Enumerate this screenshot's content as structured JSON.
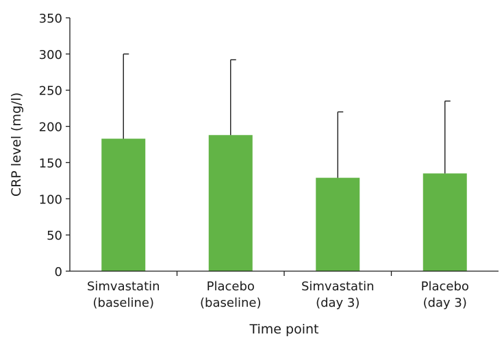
{
  "chart_data": {
    "type": "bar",
    "categories": [
      [
        "Simvastatin",
        "(baseline)"
      ],
      [
        "Placebo",
        "(baseline)"
      ],
      [
        "Simvastatin",
        "(day 3)"
      ],
      [
        "Placebo",
        "(day 3)"
      ]
    ],
    "values": [
      183,
      188,
      129,
      135
    ],
    "error_upper": [
      300,
      292,
      220,
      235
    ],
    "xlabel": "Time point",
    "ylabel": "CRP level (mg/l)",
    "ylim": [
      0,
      350
    ],
    "yticks": [
      0,
      50,
      100,
      150,
      200,
      250,
      300,
      350
    ],
    "grid": false,
    "bar_color": "#62b446"
  }
}
